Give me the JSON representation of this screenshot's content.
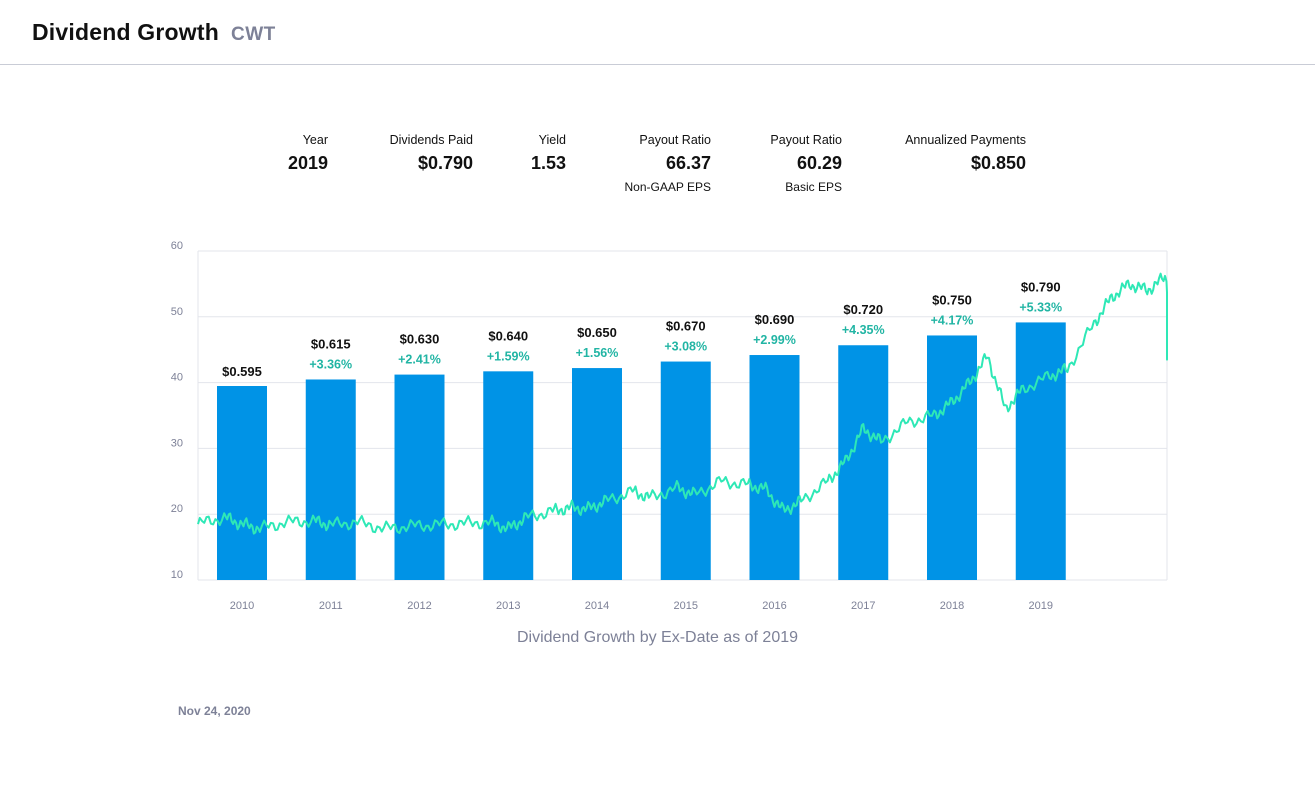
{
  "header": {
    "title": "Dividend Growth",
    "ticker": "CWT"
  },
  "stats": [
    {
      "label": "Year",
      "value": "2019",
      "sub": ""
    },
    {
      "label": "Dividends Paid",
      "value": "$0.790",
      "sub": ""
    },
    {
      "label": "Yield",
      "value": "1.53",
      "sub": ""
    },
    {
      "label": "Payout Ratio",
      "value": "66.37",
      "sub": "Non-GAAP EPS"
    },
    {
      "label": "Payout Ratio",
      "value": "60.29",
      "sub": "Basic EPS"
    },
    {
      "label": "Annualized Payments",
      "value": "$0.850",
      "sub": ""
    }
  ],
  "chart_data": {
    "type": "bar",
    "categories": [
      "2010",
      "2011",
      "2012",
      "2013",
      "2014",
      "2015",
      "2016",
      "2017",
      "2018",
      "2019"
    ],
    "series": [
      {
        "values": [
          0.595,
          0.615,
          0.63,
          0.64,
          0.65,
          0.67,
          0.69,
          0.72,
          0.75,
          0.79
        ]
      }
    ],
    "bar_labels": [
      "$0.595",
      "$0.615",
      "$0.630",
      "$0.640",
      "$0.650",
      "$0.670",
      "$0.690",
      "$0.720",
      "$0.750",
      "$0.790"
    ],
    "growth_labels": [
      "",
      "+3.36%",
      "+2.41%",
      "+1.59%",
      "+1.56%",
      "+3.08%",
      "+2.99%",
      "+4.35%",
      "+4.17%",
      "+5.33%"
    ],
    "overlay_line": {
      "type": "line",
      "points": [
        [
          2009.5,
          18.5
        ],
        [
          2009.8,
          19.5
        ],
        [
          2010.0,
          18.5
        ],
        [
          2010.2,
          17.8
        ],
        [
          2010.5,
          18.8
        ],
        [
          2010.8,
          19.0
        ],
        [
          2011.0,
          18.4
        ],
        [
          2011.3,
          18.8
        ],
        [
          2011.6,
          17.8
        ],
        [
          2011.9,
          18.2
        ],
        [
          2012.2,
          18.4
        ],
        [
          2012.5,
          18.6
        ],
        [
          2012.8,
          18.8
        ],
        [
          2013.0,
          17.8
        ],
        [
          2013.2,
          19.5
        ],
        [
          2013.5,
          20.5
        ],
        [
          2013.7,
          21.0
        ],
        [
          2013.9,
          20.8
        ],
        [
          2014.1,
          22.0
        ],
        [
          2014.4,
          23.5
        ],
        [
          2014.6,
          22.5
        ],
        [
          2014.9,
          24.0
        ],
        [
          2015.1,
          23.0
        ],
        [
          2015.4,
          25.0
        ],
        [
          2015.7,
          24.5
        ],
        [
          2015.9,
          23.8
        ],
        [
          2016.1,
          20.5
        ],
        [
          2016.3,
          22.0
        ],
        [
          2016.6,
          25.0
        ],
        [
          2016.8,
          28.0
        ],
        [
          2017.0,
          33.0
        ],
        [
          2017.2,
          31.0
        ],
        [
          2017.5,
          34.0
        ],
        [
          2017.8,
          35.0
        ],
        [
          2018.0,
          37.0
        ],
        [
          2018.2,
          40.0
        ],
        [
          2018.4,
          44.0
        ],
        [
          2018.6,
          36.0
        ],
        [
          2018.8,
          39.0
        ],
        [
          2019.1,
          41.0
        ],
        [
          2019.3,
          42.0
        ],
        [
          2019.6,
          49.0
        ],
        [
          2019.8,
          53.0
        ],
        [
          2020.0,
          55.0
        ],
        [
          2020.2,
          54.0
        ],
        [
          2020.4,
          56.0
        ],
        [
          2020.6,
          48.0
        ],
        [
          2020.8,
          47.0
        ],
        [
          2021.0,
          45.0
        ],
        [
          2021.2,
          44.0
        ],
        [
          2021.4,
          49.0
        ]
      ],
      "color": "#2ee8b6"
    },
    "price_axis": {
      "ylim": [
        10,
        60
      ],
      "ticks": [
        10,
        20,
        30,
        40,
        50,
        60
      ]
    },
    "grid": true,
    "colors": {
      "bar": "#0093e6",
      "growth_text": "#22b5a4",
      "line": "#2ee8b6",
      "grid": "#e3e5eb",
      "tick": "#7d8197"
    }
  },
  "caption": "Dividend Growth by Ex-Date as of 2019",
  "date": "Nov 24, 2020"
}
